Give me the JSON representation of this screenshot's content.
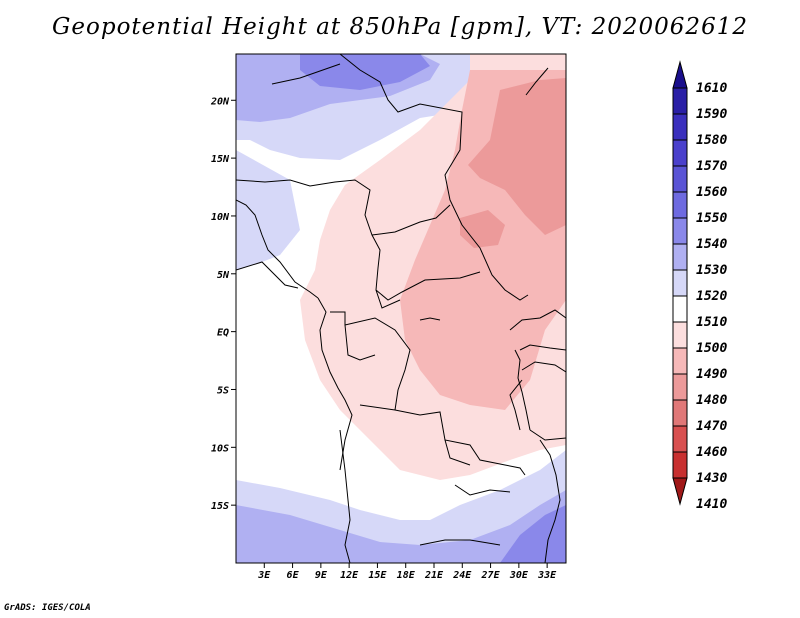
{
  "title": "Geopotential Height at 850hPa [gpm], VT: 2020062612",
  "credit": "GrADS: IGES/COLA",
  "colors": {
    "v1610": "#1a0f8c",
    "v1590": "#2a1fa6",
    "v1580": "#3a2fbd",
    "v1570": "#4a40cc",
    "v1560": "#5a54d6",
    "v1550": "#6e6ae0",
    "v1540": "#8a88ea",
    "v1530": "#b0b0f2",
    "v1520": "#d6d8f8",
    "v1510": "#ffffff",
    "v1500": "#fcdede",
    "v1490": "#f6b8b8",
    "v1480": "#ec9a9a",
    "v1470": "#e07878",
    "v1460": "#d85050",
    "v1430": "#c83030",
    "v1410": "#a01818",
    "land": "#000000"
  },
  "chart_data": {
    "type": "filled-contour-map",
    "variable": "Geopotential Height at 850hPa",
    "units": "gpm",
    "valid_time": "2020062612",
    "lon_range": [
      0,
      35
    ],
    "lat_range": [
      -20,
      24
    ],
    "x_ticks": [
      {
        "value": 3,
        "label": "3E"
      },
      {
        "value": 6,
        "label": "6E"
      },
      {
        "value": 9,
        "label": "9E"
      },
      {
        "value": 12,
        "label": "12E"
      },
      {
        "value": 15,
        "label": "15E"
      },
      {
        "value": 18,
        "label": "18E"
      },
      {
        "value": 21,
        "label": "21E"
      },
      {
        "value": 24,
        "label": "24E"
      },
      {
        "value": 27,
        "label": "27E"
      },
      {
        "value": 30,
        "label": "30E"
      },
      {
        "value": 33,
        "label": "33E"
      }
    ],
    "y_ticks": [
      {
        "value": 20,
        "label": "20N"
      },
      {
        "value": 15,
        "label": "15N"
      },
      {
        "value": 10,
        "label": "10N"
      },
      {
        "value": 5,
        "label": "5N"
      },
      {
        "value": 0,
        "label": "EQ"
      },
      {
        "value": -5,
        "label": "5S"
      },
      {
        "value": -10,
        "label": "10S"
      },
      {
        "value": -15,
        "label": "15S"
      }
    ],
    "colorbar": {
      "levels": [
        "1610",
        "1590",
        "1580",
        "1570",
        "1560",
        "1550",
        "1540",
        "1530",
        "1520",
        "1510",
        "1500",
        "1490",
        "1480",
        "1470",
        "1460",
        "1430",
        "1410"
      ]
    }
  }
}
